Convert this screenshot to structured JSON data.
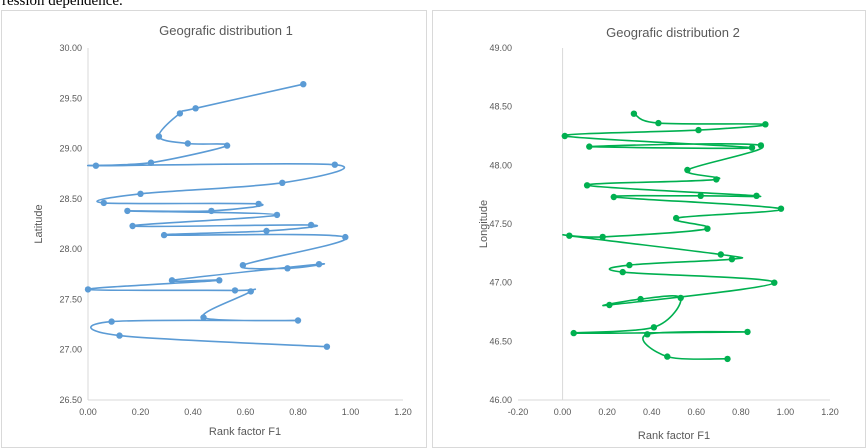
{
  "page": {
    "top_text": "ression dependence."
  },
  "chart_data": [
    {
      "type": "scatter",
      "title": "Geografic distribution 1",
      "xlabel": "Rank factor F1",
      "ylabel": "Latitude",
      "xlim": [
        0,
        1.2
      ],
      "ylim": [
        26.5,
        30.0
      ],
      "xticks": [
        "0.00",
        "0.20",
        "0.40",
        "0.60",
        "0.80",
        "1.00",
        "1.20"
      ],
      "yticks": [
        "26.50",
        "27.00",
        "27.50",
        "28.00",
        "28.50",
        "29.00",
        "29.50",
        "30.00"
      ],
      "grid": false,
      "color": "#5b9bd5",
      "series": [
        {
          "points": [
            [
              0.91,
              27.03
            ],
            [
              0.12,
              27.14
            ],
            [
              0.09,
              27.28
            ],
            [
              0.8,
              27.29
            ],
            [
              0.44,
              27.32
            ],
            [
              0.62,
              27.58
            ],
            [
              0.56,
              27.59
            ],
            [
              0.0,
              27.6
            ],
            [
              0.5,
              27.69
            ],
            [
              0.32,
              27.69
            ],
            [
              0.88,
              27.85
            ],
            [
              0.76,
              27.81
            ],
            [
              0.59,
              27.84
            ],
            [
              0.98,
              28.12
            ],
            [
              0.29,
              28.14
            ],
            [
              0.68,
              28.18
            ],
            [
              0.85,
              28.24
            ],
            [
              0.17,
              28.23
            ],
            [
              0.72,
              28.34
            ],
            [
              0.15,
              28.38
            ],
            [
              0.47,
              28.38
            ],
            [
              0.65,
              28.45
            ],
            [
              0.06,
              28.46
            ],
            [
              0.2,
              28.55
            ],
            [
              0.74,
              28.66
            ],
            [
              0.94,
              28.84
            ],
            [
              0.03,
              28.83
            ],
            [
              0.24,
              28.86
            ],
            [
              0.53,
              29.03
            ],
            [
              0.38,
              29.05
            ],
            [
              0.27,
              29.12
            ],
            [
              0.35,
              29.35
            ],
            [
              0.41,
              29.4
            ],
            [
              0.82,
              29.64
            ]
          ]
        }
      ]
    },
    {
      "type": "scatter",
      "title": "Geografic distribution 2",
      "xlabel": "Rank factor F1",
      "ylabel": "Longitude",
      "xlim": [
        -0.2,
        1.2
      ],
      "ylim": [
        46.0,
        49.0
      ],
      "xticks": [
        "-0.20",
        "0.00",
        "0.20",
        "0.40",
        "0.60",
        "0.80",
        "1.00",
        "1.20"
      ],
      "yticks": [
        "46.00",
        "46.50",
        "47.00",
        "47.50",
        "48.00",
        "48.50",
        "49.00"
      ],
      "grid": false,
      "color": "#00b050",
      "series": [
        {
          "points": [
            [
              0.74,
              46.35
            ],
            [
              0.47,
              46.37
            ],
            [
              0.38,
              46.56
            ],
            [
              0.83,
              46.58
            ],
            [
              0.05,
              46.57
            ],
            [
              0.41,
              46.62
            ],
            [
              0.53,
              46.87
            ],
            [
              0.35,
              46.86
            ],
            [
              0.21,
              46.81
            ],
            [
              0.95,
              47.0
            ],
            [
              0.27,
              47.09
            ],
            [
              0.3,
              47.15
            ],
            [
              0.76,
              47.2
            ],
            [
              0.71,
              47.24
            ],
            [
              0.03,
              47.4
            ],
            [
              0.18,
              47.39
            ],
            [
              0.65,
              47.46
            ],
            [
              0.51,
              47.55
            ],
            [
              0.98,
              47.63
            ],
            [
              0.23,
              47.73
            ],
            [
              0.62,
              47.74
            ],
            [
              0.87,
              47.74
            ],
            [
              0.11,
              47.83
            ],
            [
              0.69,
              47.88
            ],
            [
              0.56,
              47.96
            ],
            [
              0.89,
              48.17
            ],
            [
              0.12,
              48.16
            ],
            [
              0.85,
              48.15
            ],
            [
              0.01,
              48.25
            ],
            [
              0.61,
              48.3
            ],
            [
              0.91,
              48.35
            ],
            [
              0.43,
              48.36
            ],
            [
              0.32,
              48.44
            ]
          ]
        }
      ]
    }
  ]
}
